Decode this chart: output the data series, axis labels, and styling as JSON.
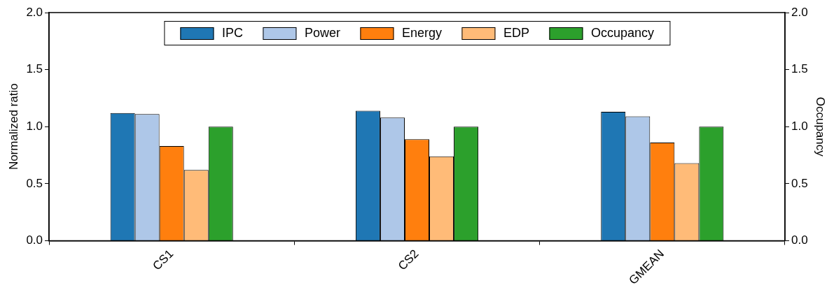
{
  "chart_data": {
    "type": "bar",
    "ylabel": "Normalized ratio",
    "y2label": "Occupancy",
    "categories": [
      "CS1",
      "CS2",
      "GMEAN"
    ],
    "series": [
      {
        "name": "IPC",
        "color": "#1f77b4",
        "values": [
          1.12,
          1.14,
          1.13
        ]
      },
      {
        "name": "Power",
        "color": "#aec7e8",
        "values": [
          1.11,
          1.08,
          1.09
        ]
      },
      {
        "name": "Energy",
        "color": "#ff7f0e",
        "values": [
          0.83,
          0.89,
          0.86
        ]
      },
      {
        "name": "EDP",
        "color": "#ffbb78",
        "values": [
          0.62,
          0.74,
          0.68
        ]
      },
      {
        "name": "Occupancy",
        "color": "#2ca02c",
        "values": [
          1.0,
          1.0,
          1.0
        ]
      }
    ],
    "ylim": [
      0,
      2
    ],
    "yticks": [
      {
        "value": 0,
        "label": "0.0"
      },
      {
        "value": 0.5,
        "label": "0.5"
      },
      {
        "value": 1,
        "label": "1.0"
      },
      {
        "value": 1.5,
        "label": "1.5"
      },
      {
        "value": 2,
        "label": "2.0"
      }
    ],
    "y2lim": [
      0,
      2
    ],
    "y2ticks": [
      {
        "value": 0,
        "label": "0.0"
      },
      {
        "value": 0.5,
        "label": "0.5"
      },
      {
        "value": 1,
        "label": "1.0"
      },
      {
        "value": 1.5,
        "label": "1.5"
      },
      {
        "value": 2,
        "label": "2.0"
      }
    ],
    "legend": "top",
    "grid": false
  }
}
